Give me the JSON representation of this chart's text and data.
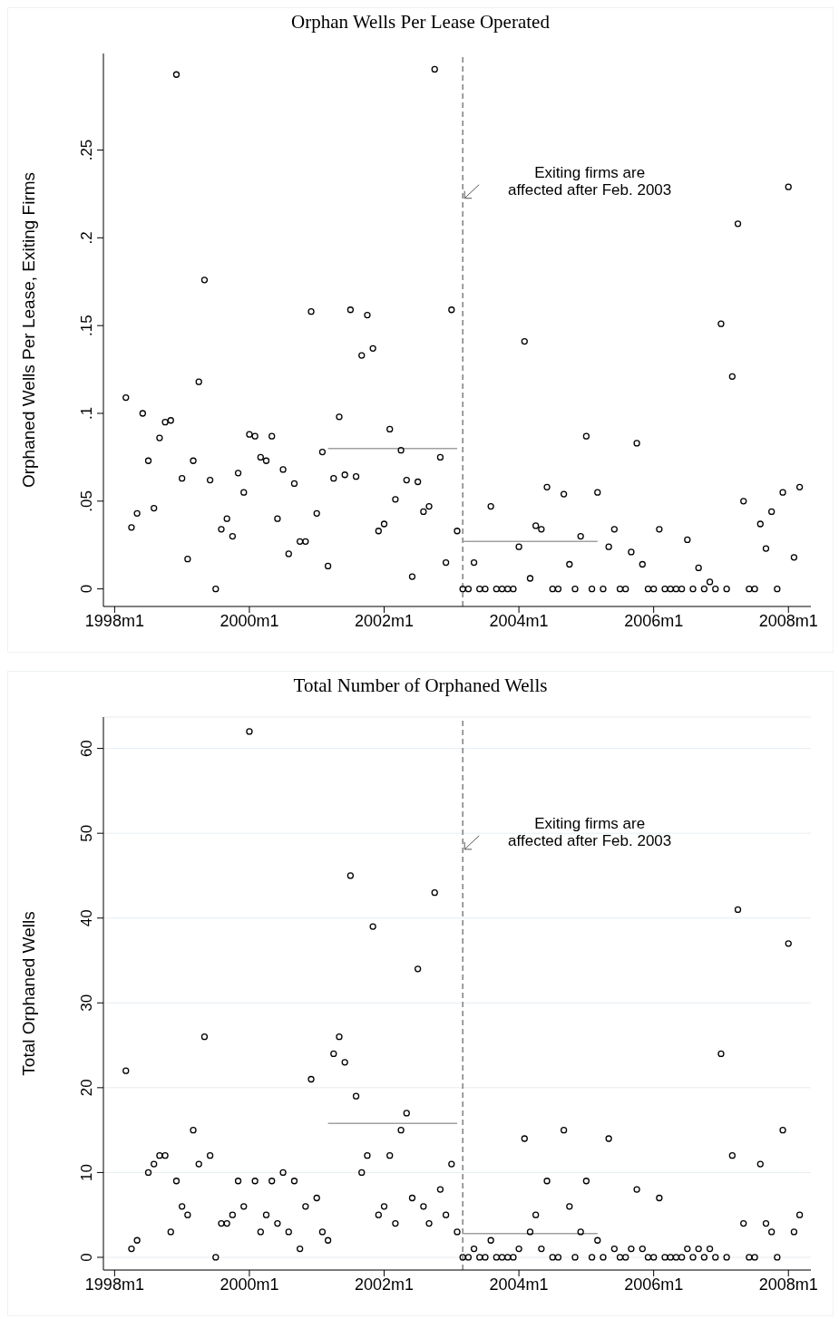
{
  "chart_data": [
    {
      "type": "scatter",
      "title": "Orphan Wells Per Lease Operated",
      "ylabel": "Orphaned Wells Per Lease, Exiting Firms",
      "x": [
        "1998-03",
        "1998-04",
        "1998-05",
        "1998-06",
        "1998-07",
        "1998-08",
        "1998-09",
        "1998-10",
        "1998-11",
        "1998-12",
        "1999-01",
        "1999-02",
        "1999-03",
        "1999-04",
        "1999-05",
        "1999-06",
        "1999-07",
        "1999-08",
        "1999-09",
        "1999-10",
        "1999-11",
        "1999-12",
        "2000-01",
        "2000-02",
        "2000-03",
        "2000-04",
        "2000-05",
        "2000-06",
        "2000-07",
        "2000-08",
        "2000-09",
        "2000-10",
        "2000-11",
        "2000-12",
        "2001-01",
        "2001-02",
        "2001-03",
        "2001-04",
        "2001-05",
        "2001-06",
        "2001-07",
        "2001-08",
        "2001-09",
        "2001-10",
        "2001-11",
        "2001-12",
        "2002-01",
        "2002-02",
        "2002-03",
        "2002-04",
        "2002-05",
        "2002-06",
        "2002-07",
        "2002-08",
        "2002-09",
        "2002-10",
        "2002-11",
        "2002-12",
        "2003-01",
        "2003-02",
        "2003-03",
        "2003-04",
        "2003-05",
        "2003-06",
        "2003-07",
        "2003-08",
        "2003-09",
        "2003-10",
        "2003-11",
        "2003-12",
        "2004-01",
        "2004-02",
        "2004-03",
        "2004-04",
        "2004-05",
        "2004-06",
        "2004-07",
        "2004-08",
        "2004-09",
        "2004-10",
        "2004-11",
        "2004-12",
        "2005-01",
        "2005-02",
        "2005-03",
        "2005-04",
        "2005-05",
        "2005-06",
        "2005-07",
        "2005-08",
        "2005-09",
        "2005-10",
        "2005-11",
        "2005-12",
        "2006-01",
        "2006-02",
        "2006-03",
        "2006-04",
        "2006-05",
        "2006-06",
        "2006-07",
        "2006-08",
        "2006-09",
        "2006-10",
        "2006-11",
        "2006-12",
        "2007-01",
        "2007-02",
        "2007-03",
        "2007-04",
        "2007-05",
        "2007-06",
        "2007-07",
        "2007-08",
        "2007-09",
        "2007-10",
        "2007-11",
        "2007-12",
        "2008-01",
        "2008-02",
        "2008-03"
      ],
      "series": [
        {
          "color": "#000000",
          "marker": "circle",
          "values": [
            0.109,
            0.035,
            0.043,
            0.1,
            0.073,
            0.046,
            0.086,
            0.095,
            0.096,
            0.293,
            0.063,
            0.017,
            0.073,
            0.118,
            0.176,
            0.062,
            0,
            0.034,
            0.04,
            0.03,
            0.066,
            0.055,
            0.088,
            0.087,
            0.075,
            0.073,
            0.087,
            0.04,
            0.068,
            0.02,
            0.06,
            0.027,
            0.027,
            0.158,
            0.043,
            0.078,
            0.013,
            0.063,
            0.098,
            0.065,
            0.159,
            0.064,
            0.133,
            0.156,
            0.137,
            0.033,
            0.037,
            0.091,
            0.051,
            0.079,
            0.062,
            0.007,
            0.061,
            0.044,
            0.047,
            0.296,
            0.075,
            0.015,
            0.159,
            0.033,
            0,
            0,
            0.015,
            0,
            0,
            0.047,
            0,
            0,
            0,
            0,
            0.024,
            0.141,
            0.006,
            0.036,
            0.034,
            0.058,
            0,
            0,
            0.054,
            0.014,
            0,
            0.03,
            0.087,
            0,
            0.055,
            0,
            0.024,
            0.034,
            0,
            0,
            0.021,
            0.083,
            0.014,
            0,
            0,
            0.034,
            0,
            0,
            0,
            0,
            0.028,
            0,
            0.012,
            0,
            0.004,
            0,
            0.151,
            0,
            0.121,
            0.208,
            0.05,
            0,
            0,
            0.037,
            0.023,
            0.044,
            0,
            0.055,
            0.229,
            0.018,
            0.058
          ]
        },
        {
          "type": "line",
          "color": "#a0a0a0",
          "marker": "none",
          "x": [
            "2001-03",
            "2003-02"
          ],
          "values": [
            0.08,
            0.08
          ]
        },
        {
          "type": "line",
          "color": "#a0a0a0",
          "marker": "none",
          "x": [
            "2003-03",
            "2005-03"
          ],
          "values": [
            0.027,
            0.027
          ]
        }
      ],
      "xlim": [
        "1997-11",
        "2008-05"
      ],
      "xticks": [
        {
          "value": "1998-01",
          "label": "1998m1"
        },
        {
          "value": "2000-01",
          "label": "2000m1"
        },
        {
          "value": "2002-01",
          "label": "2002m1"
        },
        {
          "value": "2004-01",
          "label": "2004m1"
        },
        {
          "value": "2006-01",
          "label": "2006m1"
        },
        {
          "value": "2008-01",
          "label": "2008m1"
        }
      ],
      "ylim": [
        -0.01,
        0.305
      ],
      "yticks": [
        0,
        {
          "value": 0.05,
          "label": ".05"
        },
        {
          "value": 0.1,
          "label": ".1"
        },
        {
          "value": 0.15,
          "label": ".15"
        },
        {
          "value": 0.2,
          "label": ".2"
        },
        {
          "value": 0.25,
          "label": ".25"
        }
      ],
      "grid": false,
      "ref_lines": [
        {
          "axis": "x",
          "value": "2003-03",
          "color": "#808080",
          "line_style": "dashed"
        }
      ],
      "annotations": [
        {
          "text": "Exiting firms are\naffected after Feb. 2003",
          "x": "2003-03",
          "y": 0.222
        }
      ]
    },
    {
      "type": "scatter",
      "title": "Total Number of Orphaned Wells",
      "ylabel": "Total Orphaned Wells",
      "x": [
        "1998-03",
        "1998-04",
        "1998-05",
        "1998-06",
        "1998-07",
        "1998-08",
        "1998-09",
        "1998-10",
        "1998-11",
        "1998-12",
        "1999-01",
        "1999-02",
        "1999-03",
        "1999-04",
        "1999-05",
        "1999-06",
        "1999-07",
        "1999-08",
        "1999-09",
        "1999-10",
        "1999-11",
        "1999-12",
        "2000-01",
        "2000-02",
        "2000-03",
        "2000-04",
        "2000-05",
        "2000-06",
        "2000-07",
        "2000-08",
        "2000-09",
        "2000-10",
        "2000-11",
        "2000-12",
        "2001-01",
        "2001-02",
        "2001-03",
        "2001-04",
        "2001-05",
        "2001-06",
        "2001-07",
        "2001-08",
        "2001-09",
        "2001-10",
        "2001-11",
        "2001-12",
        "2002-01",
        "2002-02",
        "2002-03",
        "2002-04",
        "2002-05",
        "2002-06",
        "2002-07",
        "2002-08",
        "2002-09",
        "2002-10",
        "2002-11",
        "2002-12",
        "2003-01",
        "2003-02",
        "2003-03",
        "2003-04",
        "2003-05",
        "2003-06",
        "2003-07",
        "2003-08",
        "2003-09",
        "2003-10",
        "2003-11",
        "2003-12",
        "2004-01",
        "2004-02",
        "2004-03",
        "2004-04",
        "2004-05",
        "2004-06",
        "2004-07",
        "2004-08",
        "2004-09",
        "2004-10",
        "2004-11",
        "2004-12",
        "2005-01",
        "2005-02",
        "2005-03",
        "2005-04",
        "2005-05",
        "2005-06",
        "2005-07",
        "2005-08",
        "2005-09",
        "2005-10",
        "2005-11",
        "2005-12",
        "2006-01",
        "2006-02",
        "2006-03",
        "2006-04",
        "2006-05",
        "2006-06",
        "2006-07",
        "2006-08",
        "2006-09",
        "2006-10",
        "2006-11",
        "2006-12",
        "2007-01",
        "2007-02",
        "2007-03",
        "2007-04",
        "2007-05",
        "2007-06",
        "2007-07",
        "2007-08",
        "2007-09",
        "2007-10",
        "2007-11",
        "2007-12",
        "2008-01",
        "2008-02",
        "2008-03"
      ],
      "series": [
        {
          "color": "#000000",
          "marker": "circle",
          "values": [
            22,
            1,
            2,
            null,
            10,
            11,
            12,
            12,
            3,
            9,
            6,
            5,
            15,
            11,
            26,
            12,
            0,
            4,
            4,
            5,
            9,
            6,
            62,
            9,
            3,
            5,
            9,
            4,
            10,
            3,
            9,
            1,
            6,
            21,
            7,
            3,
            2,
            24,
            26,
            23,
            45,
            19,
            10,
            12,
            39,
            5,
            6,
            12,
            4,
            15,
            17,
            7,
            34,
            6,
            4,
            43,
            8,
            5,
            11,
            3,
            0,
            0,
            1,
            0,
            0,
            2,
            0,
            0,
            0,
            0,
            1,
            14,
            3,
            5,
            1,
            9,
            0,
            0,
            15,
            6,
            0,
            3,
            9,
            0,
            2,
            0,
            14,
            1,
            0,
            0,
            1,
            8,
            1,
            0,
            0,
            7,
            0,
            0,
            0,
            0,
            1,
            0,
            1,
            0,
            1,
            0,
            24,
            0,
            12,
            41,
            4,
            0,
            0,
            11,
            4,
            3,
            0,
            15,
            37,
            3,
            5
          ]
        },
        {
          "type": "line",
          "color": "#a0a0a0",
          "marker": "none",
          "x": [
            "2001-03",
            "2003-02"
          ],
          "values": [
            15.8,
            15.8
          ]
        },
        {
          "type": "line",
          "color": "#a0a0a0",
          "marker": "none",
          "x": [
            "2003-03",
            "2005-03"
          ],
          "values": [
            2.8,
            2.8
          ]
        }
      ],
      "xlim": [
        "1997-11",
        "2008-05"
      ],
      "xticks": [
        {
          "value": "1998-01",
          "label": "1998m1"
        },
        {
          "value": "2000-01",
          "label": "2000m1"
        },
        {
          "value": "2002-01",
          "label": "2002m1"
        },
        {
          "value": "2004-01",
          "label": "2004m1"
        },
        {
          "value": "2006-01",
          "label": "2006m1"
        },
        {
          "value": "2008-01",
          "label": "2008m1"
        }
      ],
      "ylim": [
        -1.5,
        63.7
      ],
      "yticks": [
        0,
        10,
        20,
        30,
        40,
        50,
        60
      ],
      "grid": "y",
      "ref_lines": [
        {
          "axis": "x",
          "value": "2003-03",
          "color": "#808080",
          "line_style": "dashed"
        }
      ],
      "annotations": [
        {
          "text": "Exiting firms are\naffected after Feb. 2003",
          "x": "2003-03",
          "y": 48
        }
      ]
    }
  ]
}
